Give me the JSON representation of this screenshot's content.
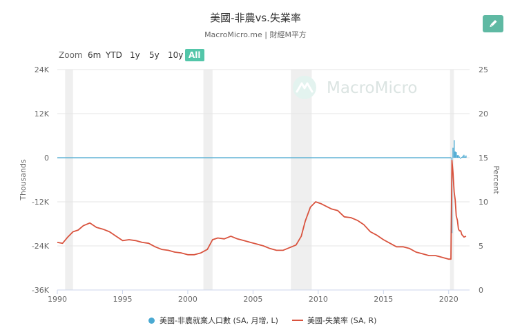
{
  "header": {
    "title": "美國-非農vs.失業率",
    "subtitle": "MacroMicro.me | 財經M平方"
  },
  "toolbar": {
    "zoom_label": "Zoom",
    "zoom_options": [
      "6m",
      "YTD",
      "1y",
      "5y",
      "10y",
      "All"
    ],
    "active_zoom": "All",
    "edit_icon": "pencil-icon"
  },
  "watermark": "MacroMicro",
  "chart_data": {
    "type": "line",
    "xlabel": "",
    "x_ticks": [
      "1990",
      "1995",
      "2000",
      "2005",
      "2010",
      "2015",
      "2020"
    ],
    "x_range": [
      1990,
      2021.6
    ],
    "y_left": {
      "label": "Thousands",
      "ticks": [
        "24K",
        "12K",
        "0",
        "-12K",
        "-24K",
        "-36K"
      ],
      "range": [
        -36000,
        24000
      ]
    },
    "y_right": {
      "label": "Percent",
      "ticks": [
        "25",
        "20",
        "15",
        "10",
        "5",
        "0"
      ],
      "range": [
        0,
        25
      ]
    },
    "recessions": [
      [
        1990.6,
        1991.2
      ],
      [
        2001.2,
        2001.9
      ],
      [
        2007.9,
        2009.5
      ],
      [
        2020.1,
        2020.4
      ]
    ],
    "series": [
      {
        "name": "美國-非農就業人口數 (SA, 月增, L)",
        "type": "column",
        "axis": "left",
        "color": "#4aa9d2",
        "x": [
          2020.25,
          2020.33,
          2020.42,
          2020.5,
          2020.58,
          2020.67,
          2020.75,
          2020.83,
          2020.92,
          2021.0,
          2021.08,
          2021.17,
          2021.25,
          2021.33
        ],
        "values": [
          -20500,
          2700,
          4800,
          1700,
          1500,
          700,
          700,
          300,
          -300,
          200,
          500,
          800,
          300,
          600
        ]
      },
      {
        "name": "美國-失業率 (SA, R)",
        "type": "line",
        "axis": "right",
        "color": "#d9533e",
        "x": [
          1990.0,
          1990.4,
          1990.8,
          1991.2,
          1991.6,
          1992.0,
          1992.5,
          1993.0,
          1993.5,
          1994.0,
          1994.5,
          1995.0,
          1995.5,
          1996.0,
          1996.5,
          1997.0,
          1997.5,
          1998.0,
          1998.5,
          1999.0,
          1999.5,
          2000.0,
          2000.5,
          2001.0,
          2001.5,
          2001.9,
          2002.3,
          2002.8,
          2003.3,
          2003.8,
          2004.3,
          2004.8,
          2005.3,
          2005.8,
          2006.3,
          2006.8,
          2007.3,
          2007.8,
          2008.3,
          2008.7,
          2009.0,
          2009.4,
          2009.8,
          2010.2,
          2010.6,
          2011.0,
          2011.5,
          2012.0,
          2012.5,
          2013.0,
          2013.5,
          2014.0,
          2014.5,
          2015.0,
          2015.5,
          2016.0,
          2016.5,
          2017.0,
          2017.5,
          2018.0,
          2018.5,
          2019.0,
          2019.5,
          2020.0,
          2020.17,
          2020.25,
          2020.33,
          2020.42,
          2020.5,
          2020.58,
          2020.67,
          2020.75,
          2020.83,
          2020.92,
          2021.0,
          2021.17,
          2021.33
        ],
        "values": [
          5.4,
          5.3,
          6.0,
          6.6,
          6.8,
          7.3,
          7.6,
          7.1,
          6.9,
          6.6,
          6.1,
          5.6,
          5.7,
          5.6,
          5.4,
          5.3,
          4.9,
          4.6,
          4.5,
          4.3,
          4.2,
          4.0,
          4.0,
          4.2,
          4.6,
          5.7,
          5.9,
          5.8,
          6.1,
          5.8,
          5.6,
          5.4,
          5.2,
          5.0,
          4.7,
          4.5,
          4.5,
          4.8,
          5.1,
          6.1,
          7.8,
          9.4,
          10.0,
          9.8,
          9.5,
          9.2,
          9.0,
          8.3,
          8.2,
          7.9,
          7.4,
          6.6,
          6.2,
          5.7,
          5.3,
          4.9,
          4.9,
          4.7,
          4.3,
          4.1,
          3.9,
          3.9,
          3.7,
          3.5,
          3.5,
          14.7,
          13.3,
          11.1,
          10.2,
          8.4,
          7.9,
          6.9,
          6.7,
          6.7,
          6.3,
          6.0,
          6.1
        ]
      }
    ],
    "legend_position": "bottom-center"
  }
}
